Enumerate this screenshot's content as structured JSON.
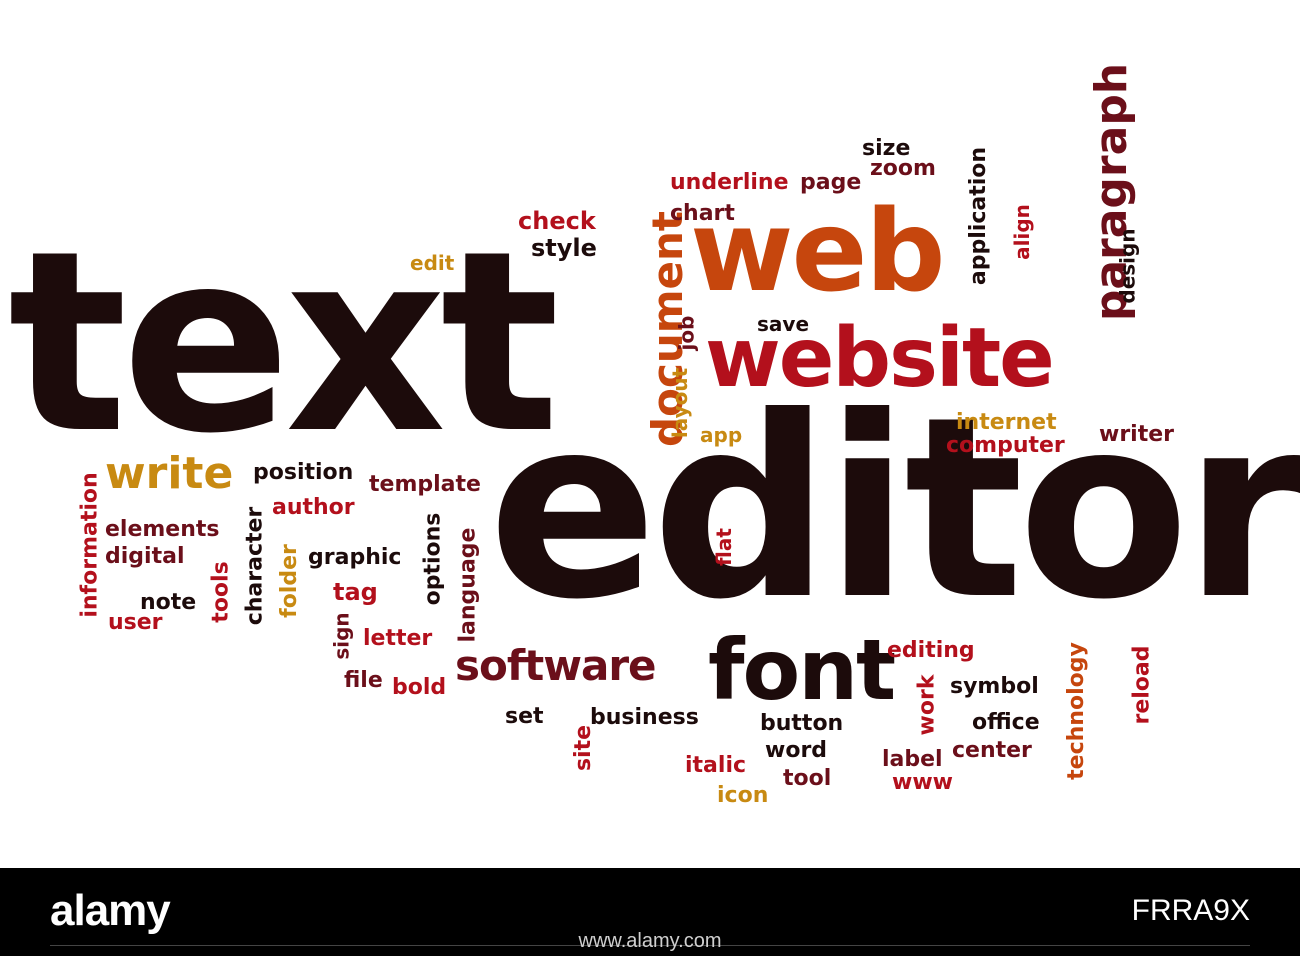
{
  "colors": {
    "black": "#1c0b0b",
    "maroon": "#6b0f1a",
    "red": "#b3101c",
    "orange": "#c6460d",
    "gold": "#c88a12",
    "darkred": "#8c0f15"
  },
  "words": [
    {
      "id": "text",
      "text": "text",
      "color": "black"
    },
    {
      "id": "editor",
      "text": "editor",
      "color": "black"
    },
    {
      "id": "web",
      "text": "web",
      "color": "orange"
    },
    {
      "id": "website",
      "text": "website",
      "color": "red"
    },
    {
      "id": "paragraph",
      "text": "paragraph",
      "color": "maroon"
    },
    {
      "id": "document",
      "text": "document",
      "color": "orange"
    },
    {
      "id": "font",
      "text": "font",
      "color": "black"
    },
    {
      "id": "software",
      "text": "software",
      "color": "maroon"
    },
    {
      "id": "write",
      "text": "write",
      "color": "gold"
    },
    {
      "id": "underline",
      "text": "underline",
      "color": "red"
    },
    {
      "id": "page",
      "text": "page",
      "color": "maroon"
    },
    {
      "id": "size",
      "text": "size",
      "color": "black"
    },
    {
      "id": "zoom",
      "text": "zoom",
      "color": "maroon"
    },
    {
      "id": "chart",
      "text": "chart",
      "color": "maroon"
    },
    {
      "id": "check",
      "text": "check",
      "color": "red"
    },
    {
      "id": "style",
      "text": "style",
      "color": "black"
    },
    {
      "id": "edit",
      "text": "edit",
      "color": "gold"
    },
    {
      "id": "save",
      "text": "save",
      "color": "black"
    },
    {
      "id": "job",
      "text": "job",
      "color": "maroon"
    },
    {
      "id": "layout",
      "text": "layout",
      "color": "gold"
    },
    {
      "id": "app",
      "text": "app",
      "color": "gold"
    },
    {
      "id": "application",
      "text": "application",
      "color": "black"
    },
    {
      "id": "align",
      "text": "align",
      "color": "red"
    },
    {
      "id": "design",
      "text": "design",
      "color": "black"
    },
    {
      "id": "internet",
      "text": "internet",
      "color": "gold"
    },
    {
      "id": "computer",
      "text": "computer",
      "color": "red"
    },
    {
      "id": "writer",
      "text": "writer",
      "color": "maroon"
    },
    {
      "id": "position",
      "text": "position",
      "color": "black"
    },
    {
      "id": "template",
      "text": "template",
      "color": "maroon"
    },
    {
      "id": "author",
      "text": "author",
      "color": "red"
    },
    {
      "id": "information",
      "text": "information",
      "color": "red"
    },
    {
      "id": "elements",
      "text": "elements",
      "color": "maroon"
    },
    {
      "id": "digital",
      "text": "digital",
      "color": "maroon"
    },
    {
      "id": "character",
      "text": "character",
      "color": "black"
    },
    {
      "id": "tools",
      "text": "tools",
      "color": "red"
    },
    {
      "id": "note",
      "text": "note",
      "color": "black"
    },
    {
      "id": "user",
      "text": "user",
      "color": "red"
    },
    {
      "id": "folder",
      "text": "folder",
      "color": "gold"
    },
    {
      "id": "graphic",
      "text": "graphic",
      "color": "black"
    },
    {
      "id": "options",
      "text": "options",
      "color": "black"
    },
    {
      "id": "language",
      "text": "language",
      "color": "maroon"
    },
    {
      "id": "tag",
      "text": "tag",
      "color": "red"
    },
    {
      "id": "sign",
      "text": "sign",
      "color": "maroon"
    },
    {
      "id": "letter",
      "text": "letter",
      "color": "red"
    },
    {
      "id": "file",
      "text": "file",
      "color": "maroon"
    },
    {
      "id": "bold",
      "text": "bold",
      "color": "red"
    },
    {
      "id": "flat",
      "text": "flat",
      "color": "red"
    },
    {
      "id": "editing",
      "text": "editing",
      "color": "red"
    },
    {
      "id": "work",
      "text": "work",
      "color": "red"
    },
    {
      "id": "symbol",
      "text": "symbol",
      "color": "black"
    },
    {
      "id": "technology",
      "text": "technology",
      "color": "orange"
    },
    {
      "id": "reload",
      "text": "reload",
      "color": "red"
    },
    {
      "id": "office",
      "text": "office",
      "color": "black"
    },
    {
      "id": "center",
      "text": "center",
      "color": "maroon"
    },
    {
      "id": "label",
      "text": "label",
      "color": "maroon"
    },
    {
      "id": "www",
      "text": "www",
      "color": "red"
    },
    {
      "id": "set",
      "text": "set",
      "color": "black"
    },
    {
      "id": "business",
      "text": "business",
      "color": "black"
    },
    {
      "id": "site",
      "text": "site",
      "color": "red"
    },
    {
      "id": "button",
      "text": "button",
      "color": "black"
    },
    {
      "id": "word",
      "text": "word",
      "color": "black"
    },
    {
      "id": "italic",
      "text": "italic",
      "color": "red"
    },
    {
      "id": "tool",
      "text": "tool",
      "color": "maroon"
    },
    {
      "id": "icon",
      "text": "icon",
      "color": "gold"
    }
  ],
  "footer": {
    "brand": "alamy",
    "image_code": "FRRA9X",
    "url": "www.alamy.com"
  }
}
